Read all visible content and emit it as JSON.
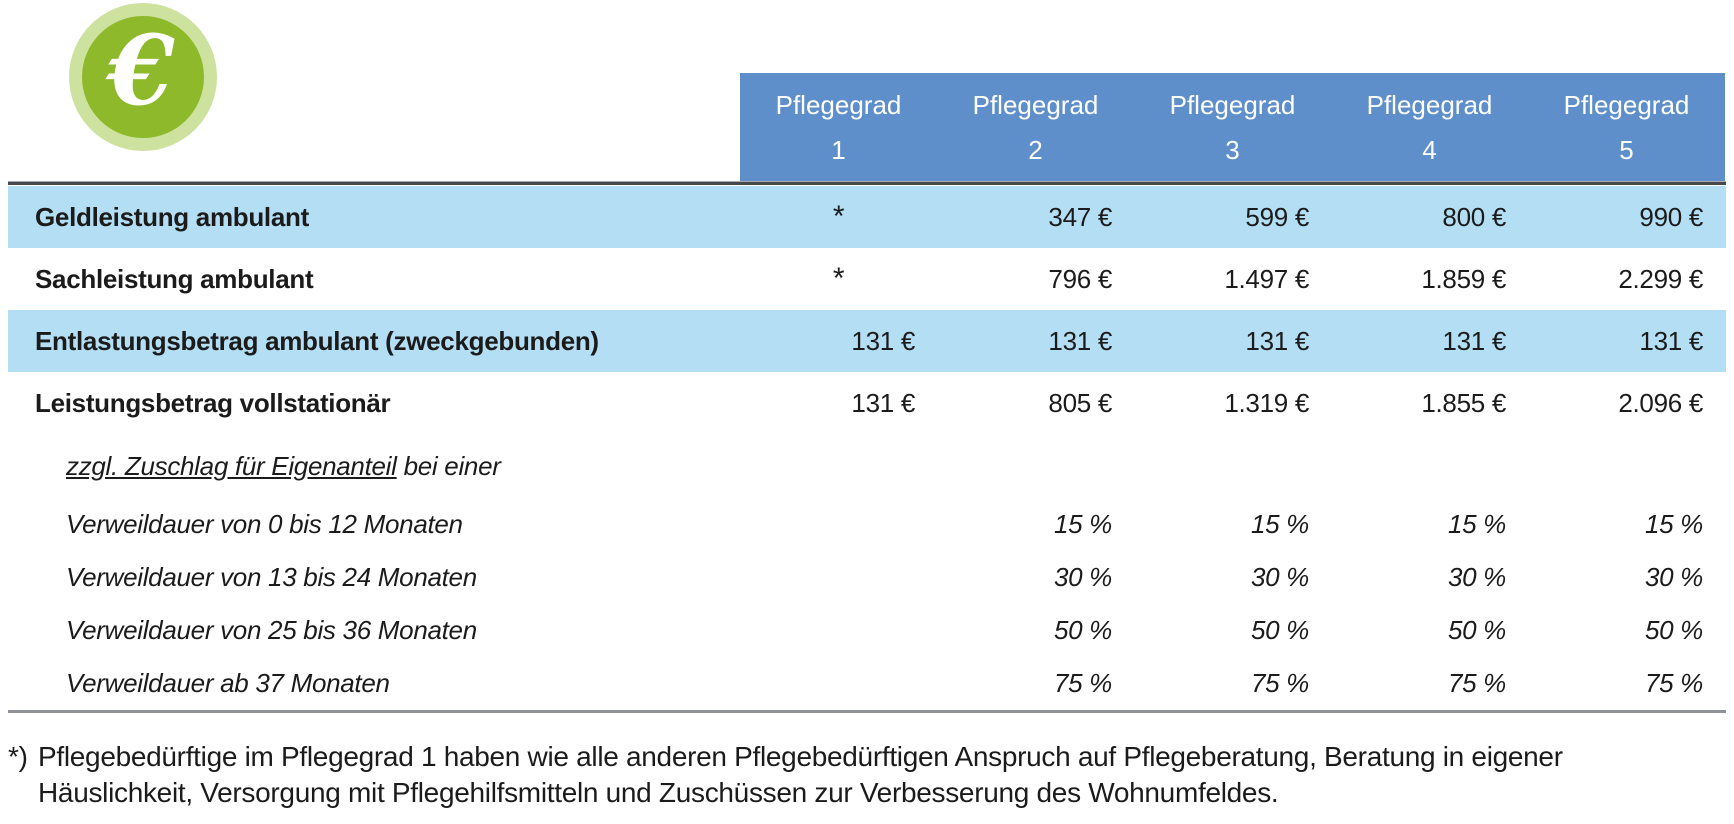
{
  "icon": {
    "symbol": "€"
  },
  "colors": {
    "header_bg": "#5e8fcb",
    "highlight_bg": "#b4def4",
    "icon_green": "#8db92a",
    "icon_ring": "#cde29e",
    "rule_dark": "#45484d",
    "rule_gray": "#8f9296",
    "header_text": "#ffffff",
    "body_text": "#1b1b1b"
  },
  "table": {
    "column_headers": [
      {
        "title": "Pflegegrad",
        "grade": "1"
      },
      {
        "title": "Pflegegrad",
        "grade": "2"
      },
      {
        "title": "Pflegegrad",
        "grade": "3"
      },
      {
        "title": "Pflegegrad",
        "grade": "4"
      },
      {
        "title": "Pflegegrad",
        "grade": "5"
      }
    ],
    "rows": [
      {
        "style": "main",
        "highlight": true,
        "label_parts": [
          {
            "text": "Geldleistung ambulant",
            "underline": false
          }
        ],
        "values": [
          "*",
          "347 €",
          "599 €",
          "800 €",
          "990 €"
        ]
      },
      {
        "style": "main",
        "highlight": false,
        "label_parts": [
          {
            "text": "Sachleistung ambulant",
            "underline": false
          }
        ],
        "values": [
          "*",
          "796 €",
          "1.497 €",
          "1.859 €",
          "2.299 €"
        ]
      },
      {
        "style": "main",
        "highlight": true,
        "label_parts": [
          {
            "text": "Entlastungsbetrag ambulant (zweckgebunden)",
            "underline": false
          }
        ],
        "values": [
          "131 €",
          "131 €",
          "131 €",
          "131 €",
          "131 €"
        ]
      },
      {
        "style": "main",
        "highlight": false,
        "label_parts": [
          {
            "text": "Leistungsbetrag vollstationär",
            "underline": false
          }
        ],
        "values": [
          "131 €",
          "805 €",
          "1.319 €",
          "1.855 €",
          "2.096 €"
        ]
      },
      {
        "style": "subhead",
        "highlight": false,
        "label_parts": [
          {
            "text": "zzgl. Zuschlag für Eigenanteil",
            "underline": true
          },
          {
            "text": " bei einer",
            "underline": false
          }
        ],
        "values": [
          "",
          "",
          "",
          "",
          ""
        ]
      },
      {
        "style": "sub",
        "highlight": false,
        "label_parts": [
          {
            "text": "Verweildauer von 0 bis 12 Monaten",
            "underline": false
          }
        ],
        "values": [
          "",
          "15 %",
          "15 %",
          "15 %",
          "15 %"
        ]
      },
      {
        "style": "sub",
        "highlight": false,
        "label_parts": [
          {
            "text": "Verweildauer von 13 bis 24 Monaten",
            "underline": false
          }
        ],
        "values": [
          "",
          "30 %",
          "30 %",
          "30 %",
          "30 %"
        ]
      },
      {
        "style": "sub",
        "highlight": false,
        "label_parts": [
          {
            "text": "Verweildauer von 25 bis 36 Monaten",
            "underline": false
          }
        ],
        "values": [
          "",
          "50 %",
          "50 %",
          "50 %",
          "50 %"
        ]
      },
      {
        "style": "sub",
        "highlight": false,
        "label_parts": [
          {
            "text": "Verweildauer ab 37 Monaten",
            "underline": false
          }
        ],
        "values": [
          "",
          "75 %",
          "75 %",
          "75 %",
          "75 %"
        ]
      }
    ]
  },
  "footnote": {
    "marker": "*)",
    "lines": [
      "Pflegebedürftige im Pflegegrad 1 haben wie alle anderen Pflegebedürftigen Anspruch auf Pflegeberatung, Beratung in eigener",
      "Häuslichkeit, Versorgung mit Pflegehilfsmitteln und Zuschüssen zur Verbesserung des Wohnumfeldes."
    ]
  }
}
